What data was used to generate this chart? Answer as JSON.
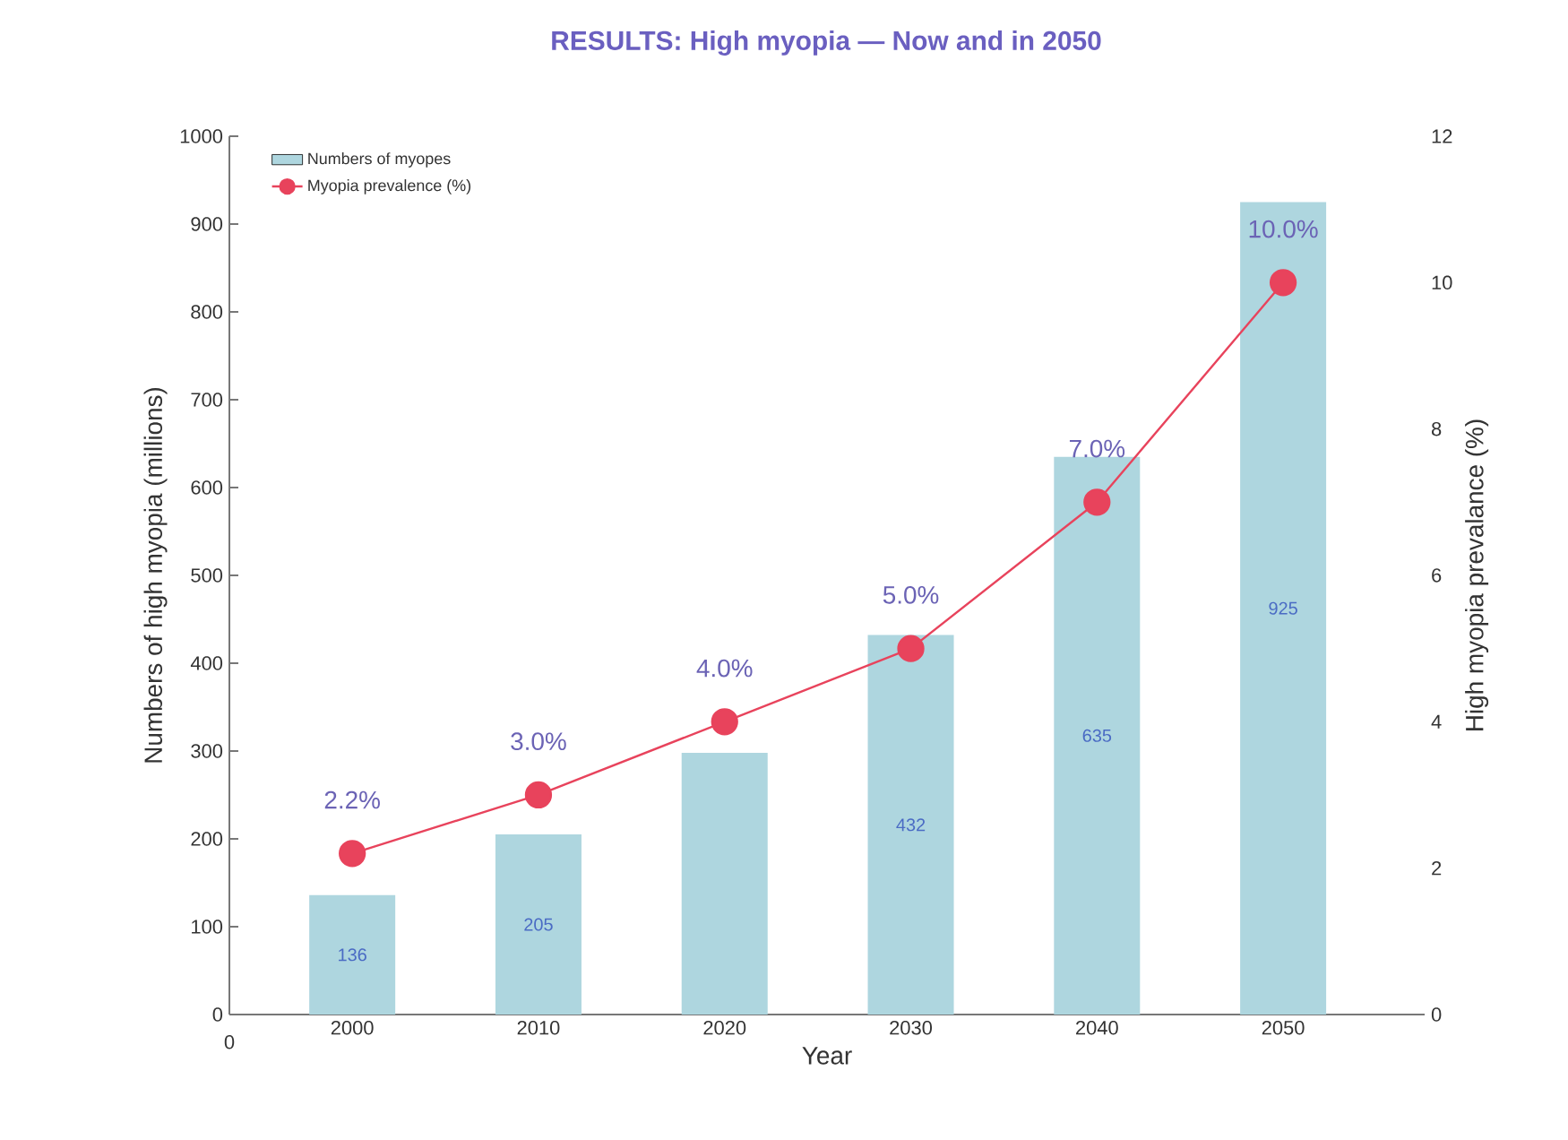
{
  "chart_data": {
    "type": "bar",
    "title": "RESULTS: High myopia — Now and in 2050",
    "xlabel": "Year",
    "ylabel": "Numbers of high myopia (millions)",
    "y2label": "High myopia prevalance (%)",
    "categories": [
      "2000",
      "2010",
      "2020",
      "2030",
      "2040",
      "2050"
    ],
    "series": [
      {
        "name": "Numbers of myopes",
        "color": "#aed6df",
        "values": [
          136,
          205,
          298,
          432,
          635,
          925
        ],
        "value_labels": [
          "136",
          "205",
          null,
          "432",
          "635",
          "925"
        ]
      },
      {
        "name": "Myopia prevalence (%)",
        "type": "line",
        "axis": "y2",
        "color": "#e8435c",
        "marker": "circle",
        "values": [
          2.2,
          3.0,
          4.0,
          5.0,
          7.0,
          10.0
        ],
        "value_labels": [
          "2.2%",
          "3.0%",
          "4.0%",
          "5.0%",
          "7.0%",
          "10.0%"
        ]
      }
    ],
    "ylim": [
      0,
      1000
    ],
    "yticks": [
      0,
      100,
      200,
      300,
      400,
      500,
      600,
      700,
      800,
      900,
      1000
    ],
    "y2lim": [
      0,
      12
    ],
    "y2ticks": [
      0,
      2,
      4,
      6,
      8,
      10,
      12
    ],
    "legend": "top left",
    "annotations": [
      "0"
    ]
  }
}
